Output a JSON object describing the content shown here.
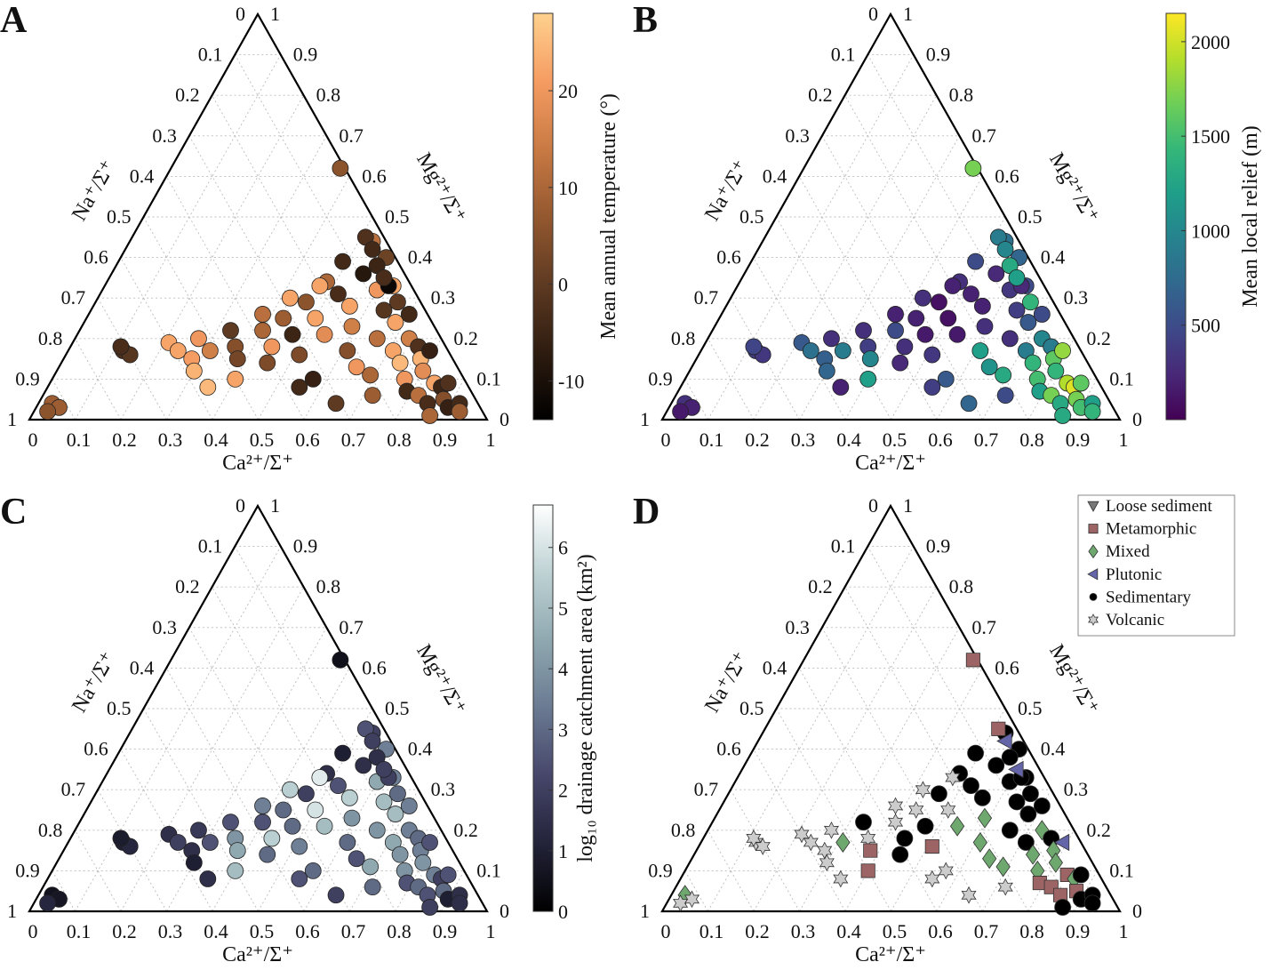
{
  "chart_data": {
    "type": "scatter",
    "subtype": "ternary",
    "axes": {
      "bottom": {
        "label": "Ca²⁺/Σ⁺",
        "ticks": [
          "0",
          "0.1",
          "0.2",
          "0.3",
          "0.4",
          "0.5",
          "0.6",
          "0.7",
          "0.8",
          "0.9",
          "1"
        ]
      },
      "left": {
        "label": "Na⁺/Σ⁺",
        "ticks": [
          "0",
          "0.1",
          "0.2",
          "0.3",
          "0.4",
          "0.5",
          "0.6",
          "0.7",
          "0.8",
          "0.9",
          "1"
        ]
      },
      "right": {
        "label": "Mg²⁺/Σ⁺",
        "ticks": [
          "0",
          "0.1",
          "0.2",
          "0.3",
          "0.4",
          "0.5",
          "0.6",
          "0.7",
          "0.8",
          "0.9",
          "1"
        ]
      },
      "grid": true
    },
    "point_fields": [
      "Ca",
      "Mg",
      "temperature",
      "relief",
      "log_area",
      "lithology"
    ],
    "points": [
      [
        0.03,
        0.04,
        8,
        300,
        0.6,
        2
      ],
      [
        0.05,
        0.03,
        8,
        200,
        0.7,
        5
      ],
      [
        0.03,
        0.02,
        6,
        150,
        1.2,
        5
      ],
      [
        0.12,
        0.17,
        -2,
        400,
        1.0,
        5
      ],
      [
        0.14,
        0.16,
        -1,
        350,
        1.2,
        5
      ],
      [
        0.11,
        0.18,
        -3,
        450,
        0.9,
        5
      ],
      [
        0.21,
        0.19,
        22,
        600,
        1.5,
        5
      ],
      [
        0.24,
        0.17,
        22,
        800,
        2.0,
        5
      ],
      [
        0.27,
        0.2,
        20,
        300,
        1.8,
        5
      ],
      [
        0.28,
        0.15,
        21,
        650,
        1.5,
        5
      ],
      [
        0.3,
        0.12,
        24,
        700,
        1.0,
        5
      ],
      [
        0.35,
        0.08,
        25,
        200,
        1.5,
        5
      ],
      [
        0.31,
        0.17,
        15,
        900,
        2.5,
        2
      ],
      [
        0.36,
        0.18,
        5,
        400,
        4.0,
        5
      ],
      [
        0.38,
        0.15,
        3,
        1000,
        4.5,
        1
      ],
      [
        0.4,
        0.1,
        22,
        1200,
        5.0,
        1
      ],
      [
        0.4,
        0.22,
        10,
        500,
        2.5,
        5
      ],
      [
        0.43,
        0.25,
        8,
        200,
        3.0,
        5
      ],
      [
        0.44,
        0.18,
        20,
        300,
        5.5,
        4
      ],
      [
        0.46,
        0.29,
        6,
        100,
        2.0,
        4
      ],
      [
        0.47,
        0.21,
        -5,
        150,
        3.0,
        4
      ],
      [
        0.48,
        0.34,
        10,
        300,
        1.5,
        4
      ],
      [
        0.49,
        0.39,
        -4,
        500,
        1.0,
        4
      ],
      [
        0.5,
        0.25,
        22,
        100,
        6.0,
        5
      ],
      [
        0.51,
        0.16,
        4,
        350,
        3.5,
        1
      ],
      [
        0.52,
        0.31,
        -3,
        200,
        2.5,
        4
      ],
      [
        0.53,
        0.44,
        12,
        800,
        2.0,
        4
      ],
      [
        0.54,
        0.21,
        18,
        150,
        5.0,
        2
      ],
      [
        0.55,
        0.36,
        -8,
        250,
        1.5,
        4
      ],
      [
        0.56,
        0.28,
        22,
        200,
        5.5,
        4
      ],
      [
        0.57,
        0.1,
        -6,
        600,
        3.0,
        5
      ],
      [
        0.58,
        0.4,
        2,
        700,
        3.5,
        4
      ],
      [
        0.59,
        0.23,
        15,
        300,
        4.0,
        2
      ],
      [
        0.6,
        0.32,
        20,
        350,
        4.5,
        4
      ],
      [
        0.61,
        0.17,
        5,
        1200,
        3.0,
        2
      ],
      [
        0.65,
        0.04,
        0,
        700,
        2.0,
        5
      ],
      [
        0.55,
        0.08,
        -4,
        400,
        2.5,
        5
      ],
      [
        0.63,
        0.33,
        22,
        500,
        3.5,
        4
      ],
      [
        0.64,
        0.27,
        -1,
        400,
        5.0,
        4
      ],
      [
        0.65,
        0.13,
        20,
        1100,
        2.5,
        2
      ],
      [
        0.66,
        0.2,
        12,
        300,
        4.0,
        4
      ],
      [
        0.62,
        0.33,
        -12,
        250,
        2.0,
        4
      ],
      [
        0.68,
        0.24,
        22,
        600,
        5.0,
        4
      ],
      [
        0.69,
        0.11,
        10,
        1300,
        4.5,
        2
      ],
      [
        0.7,
        0.26,
        -4,
        500,
        3.5,
        4
      ],
      [
        0.71,
        0.17,
        22,
        900,
        4.5,
        4
      ],
      [
        0.72,
        0.06,
        8,
        500,
        3.0,
        5
      ],
      [
        0.73,
        0.2,
        15,
        1000,
        3.5,
        2
      ],
      [
        0.74,
        0.14,
        25,
        1400,
        4.0,
        2
      ],
      [
        0.37,
        0.62,
        6,
        1700,
        0.5,
        1
      ],
      [
        0.51,
        0.45,
        -2,
        900,
        2.5,
        1
      ],
      [
        0.54,
        0.42,
        -4,
        1000,
        2.0,
        3
      ],
      [
        0.57,
        0.38,
        -5,
        1300,
        1.5,
        4
      ],
      [
        0.6,
        0.35,
        -3,
        1200,
        2.0,
        3
      ],
      [
        0.66,
        0.29,
        0,
        1400,
        3.0,
        4
      ],
      [
        0.76,
        0.18,
        -2,
        900,
        3.0,
        4
      ],
      [
        0.77,
        0.1,
        20,
        1500,
        4.0,
        2
      ],
      [
        0.78,
        0.15,
        24,
        1600,
        3.5,
        2
      ],
      [
        0.79,
        0.07,
        -4,
        1200,
        2.5,
        1
      ],
      [
        0.8,
        0.12,
        18,
        1400,
        4.0,
        2
      ],
      [
        0.79,
        0.17,
        -6,
        1800,
        2.5,
        3
      ],
      [
        0.82,
        0.06,
        12,
        1700,
        3.0,
        1
      ],
      [
        0.84,
        0.09,
        22,
        1900,
        3.5,
        1
      ],
      [
        0.85,
        0.04,
        -3,
        1300,
        2.5,
        1
      ],
      [
        0.86,
        0.08,
        -5,
        2050,
        2.0,
        2
      ],
      [
        0.88,
        0.05,
        5,
        1700,
        3.0,
        1
      ],
      [
        0.87,
        0.09,
        -2,
        1600,
        2.5,
        4
      ],
      [
        0.9,
        0.03,
        -6,
        1500,
        1.0,
        4
      ],
      [
        0.92,
        0.04,
        -4,
        1200,
        1.5,
        4
      ],
      [
        0.93,
        0.02,
        8,
        1400,
        1.5,
        4
      ],
      [
        0.87,
        0.01,
        10,
        1300,
        2.0,
        4
      ],
      [
        0.45,
        0.14,
        4,
        250,
        3.0,
        4
      ],
      [
        0.42,
        0.3,
        22,
        300,
        5.5,
        5
      ],
      [
        0.47,
        0.33,
        22,
        200,
        6.2,
        5
      ],
      [
        0.33,
        0.22,
        0,
        300,
        2.5,
        4
      ],
      [
        0.38,
        0.26,
        12,
        200,
        3.5,
        5
      ]
    ],
    "panels": [
      {
        "letter": "A",
        "color_by": "temperature",
        "colorbar": {
          "label": "Mean annual temperature (°)",
          "range": [
            -14,
            28
          ],
          "ticks": [
            20,
            10,
            0,
            -10
          ],
          "colormap": [
            "#000000",
            "#2e1c10",
            "#5e3a22",
            "#94582f",
            "#c97a44",
            "#f59c62",
            "#ffd18e"
          ]
        }
      },
      {
        "letter": "B",
        "color_by": "relief",
        "colorbar": {
          "label": "Mean local relief (m)",
          "range": [
            0,
            2150
          ],
          "ticks": [
            500,
            1000,
            1500,
            2000
          ],
          "colormap": [
            "#440154",
            "#482878",
            "#3e4989",
            "#31688e",
            "#26828e",
            "#1f9e89",
            "#35b779",
            "#6ece58",
            "#b5de2b",
            "#fde725"
          ]
        }
      },
      {
        "letter": "C",
        "color_by": "log_area",
        "colorbar": {
          "label": "log₁₀ drainage catchment area (km²)",
          "range": [
            0,
            6.7
          ],
          "ticks": [
            0,
            1,
            2,
            3,
            4,
            5,
            6
          ],
          "colormap": [
            "#000000",
            "#23233a",
            "#46466a",
            "#6a7a92",
            "#8fa8b0",
            "#bed2d4",
            "#ffffff"
          ]
        }
      },
      {
        "letter": "D",
        "color_by": "lithology",
        "legend": {
          "position": "top-right",
          "entries": [
            {
              "label": "Loose sediment",
              "marker": "triangle-down",
              "color": "#777777"
            },
            {
              "label": "Metamorphic",
              "marker": "square",
              "color": "#9c6464"
            },
            {
              "label": "Mixed",
              "marker": "diamond",
              "color": "#6fa86f"
            },
            {
              "label": "Plutonic",
              "marker": "triangle-left",
              "color": "#6464a8"
            },
            {
              "label": "Sedimentary",
              "marker": "circle",
              "color": "#000000"
            },
            {
              "label": "Volcanic",
              "marker": "star",
              "color": "#cccccc"
            }
          ]
        }
      }
    ]
  }
}
